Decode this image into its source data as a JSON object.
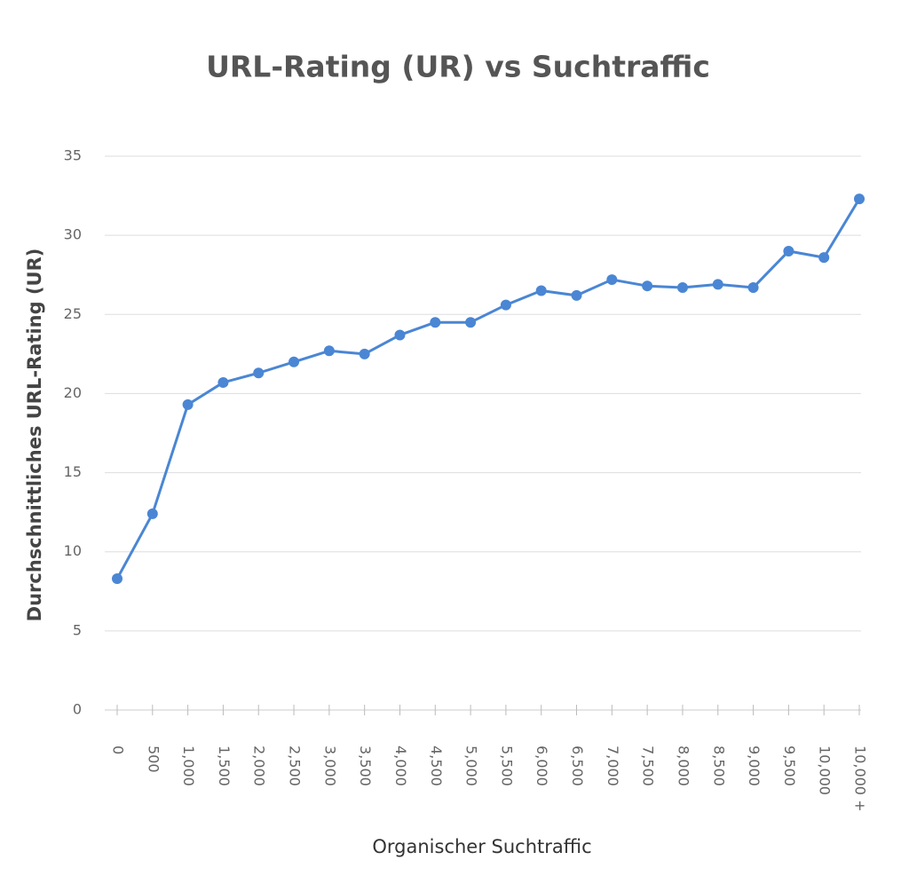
{
  "chart_data": {
    "type": "line",
    "title": "URL-Rating (UR) vs Suchtraffic",
    "x_label": "Organischer Suchtraffic",
    "y_label": "Durchschnittliches URL-Rating (UR)",
    "categories": [
      "0",
      "500",
      "1,000",
      "1,500",
      "2,000",
      "2,500",
      "3,000",
      "3,500",
      "4,000",
      "4,500",
      "5,000",
      "5,500",
      "6,000",
      "6,500",
      "7,000",
      "7,500",
      "8,000",
      "8,500",
      "9,000",
      "9,500",
      "10,000",
      "10,000 +"
    ],
    "series": [
      {
        "name": "URL-Rating",
        "color": "#4a86d4",
        "values": [
          8.3,
          12.4,
          19.3,
          20.7,
          21.3,
          22.0,
          22.7,
          22.5,
          23.7,
          24.5,
          24.5,
          25.6,
          26.5,
          26.2,
          27.2,
          26.8,
          26.7,
          26.9,
          26.7,
          29.0,
          28.6,
          32.3
        ]
      }
    ],
    "ylim": [
      0,
      35
    ],
    "yticks": [
      0,
      5,
      10,
      15,
      20,
      25,
      30,
      35
    ],
    "grid": true
  }
}
